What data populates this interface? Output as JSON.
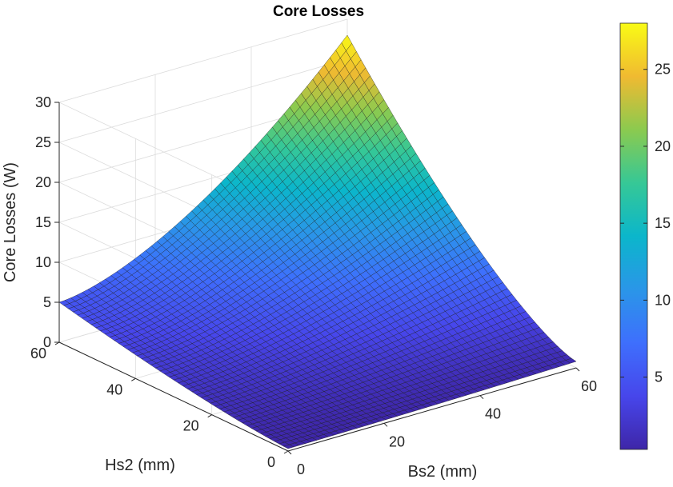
{
  "chart_data": {
    "type": "surface3d",
    "title": "Core Losses",
    "xlabel": "Bs2 (mm)",
    "ylabel": "Hs2 (mm)",
    "zlabel": "Core Losses (W)",
    "xlim": [
      0,
      60
    ],
    "ylim": [
      0,
      60
    ],
    "zlim": [
      0,
      30
    ],
    "xticks": [
      0,
      20,
      40,
      60
    ],
    "yticks": [
      0,
      20,
      40,
      60
    ],
    "zticks": [
      0,
      5,
      10,
      15,
      20,
      25,
      30
    ],
    "xtick_labels": [
      "0",
      "20",
      "40",
      "60"
    ],
    "ytick_labels": [
      "0",
      "20",
      "40",
      "60"
    ],
    "ztick_labels": [
      "0",
      "5",
      "10",
      "15",
      "20",
      "25",
      "30"
    ],
    "grid": true,
    "colormap": "parula",
    "colorbar": {
      "range": [
        0.3,
        28
      ],
      "ticks": [
        5,
        10,
        15,
        20,
        25
      ],
      "tick_labels": [
        "5",
        "10",
        "15",
        "20",
        "25"
      ],
      "placement": "right"
    },
    "surface": {
      "x_range": [
        0,
        60
      ],
      "y_range": [
        0,
        60
      ],
      "grid_size": 50,
      "corner_values": {
        "x0_y0": 0.3,
        "x60_y0": 0.8,
        "x0_y60": 5.0,
        "x60_y60": 28.0
      },
      "x_exponent": 1.6,
      "y_exponent": 1.4
    }
  }
}
